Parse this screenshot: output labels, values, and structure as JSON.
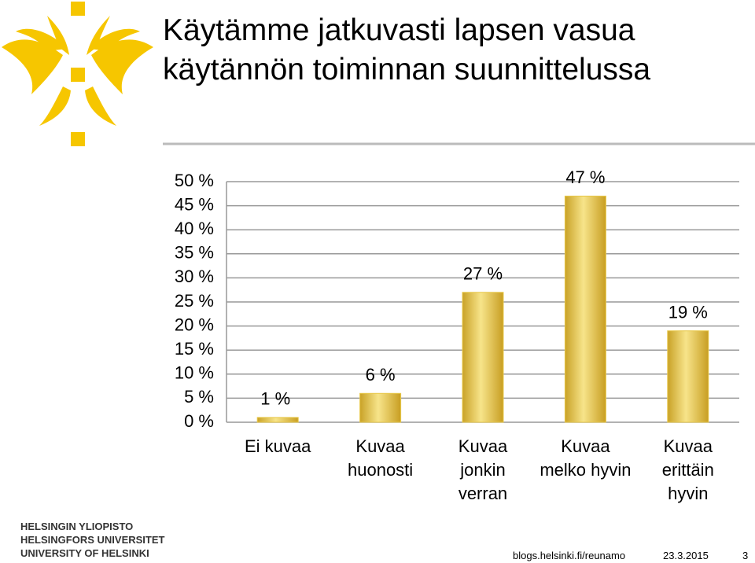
{
  "chart_data": {
    "type": "bar",
    "title": "Käytämme jatkuvasti lapsen vasua käytännön toiminnan suunnittelussa",
    "categories": [
      "Ei kuvaa",
      "Kuvaa huonosti",
      "Kuvaa jonkin verran",
      "Kuvaa melko hyvin",
      "Kuvaa erittäin hyvin"
    ],
    "values": [
      1,
      6,
      27,
      47,
      19
    ],
    "value_labels": [
      "1 %",
      "6 %",
      "27 %",
      "47 %",
      "19 %"
    ],
    "color": "#e8c84a",
    "ylim": [
      0,
      50
    ],
    "yticks": [
      {
        "value": 0,
        "label": "0 %"
      },
      {
        "value": 5,
        "label": "5 %"
      },
      {
        "value": 10,
        "label": "10 %"
      },
      {
        "value": 15,
        "label": "15 %"
      },
      {
        "value": 20,
        "label": "20 %"
      },
      {
        "value": 25,
        "label": "25 %"
      },
      {
        "value": 30,
        "label": "30 %"
      },
      {
        "value": 35,
        "label": "35 %"
      },
      {
        "value": 40,
        "label": "40 %"
      },
      {
        "value": 45,
        "label": "45 %"
      },
      {
        "value": 50,
        "label": "50 %"
      }
    ],
    "grid": true
  },
  "footer": {
    "university": [
      "HELSINGIN YLIOPISTO",
      "HELSINGFORS UNIVERSITET",
      "UNIVERSITY OF HELSINKI"
    ],
    "url": "blogs.helsinki.fi/reunamo",
    "date": "23.3.2015",
    "page": "3"
  }
}
